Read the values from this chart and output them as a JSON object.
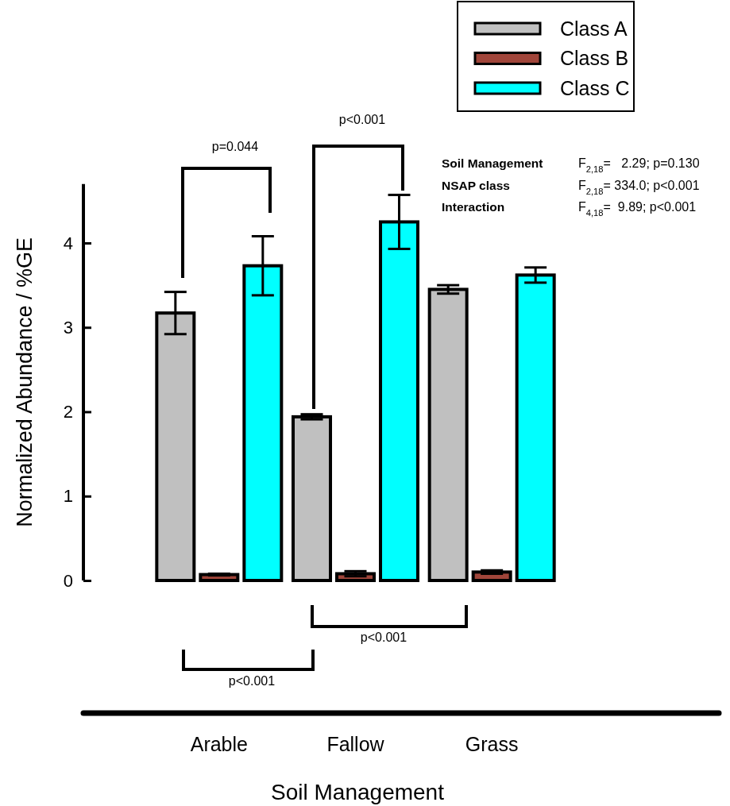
{
  "chart_data": {
    "type": "bar",
    "xlabel": "Soil Management",
    "ylabel": "Normalized Abundance / %GE",
    "categories": [
      "Arable",
      "Fallow",
      "Grass"
    ],
    "series": [
      {
        "name": "Class A",
        "color": "#c0c0c0",
        "values": [
          3.17,
          1.94,
          3.45
        ],
        "errors": [
          0.25,
          0.03,
          0.05
        ]
      },
      {
        "name": "Class B",
        "color": "#a0453a",
        "values": [
          0.07,
          0.08,
          0.1
        ],
        "errors": [
          0.01,
          0.03,
          0.02
        ]
      },
      {
        "name": "Class C",
        "color": "#00ffff",
        "values": [
          3.73,
          4.25,
          3.62
        ],
        "errors": [
          0.35,
          0.32,
          0.09
        ]
      }
    ],
    "ylim": [
      -1.57,
      4.7
    ],
    "yticks": [
      0,
      1,
      2,
      3,
      4
    ],
    "legend": "top right",
    "annotations": [
      "p=0.044",
      "p<0.001",
      "p<0.001",
      "p<0.001",
      "Soil Management",
      "F$_{2,18}$=   2.29; p=0.130",
      "NSAP class",
      "F$_{2,18}$= 334.0; p<0.001",
      "Interaction",
      "F$_{4,18}$=  9.89; p<0.001"
    ]
  }
}
